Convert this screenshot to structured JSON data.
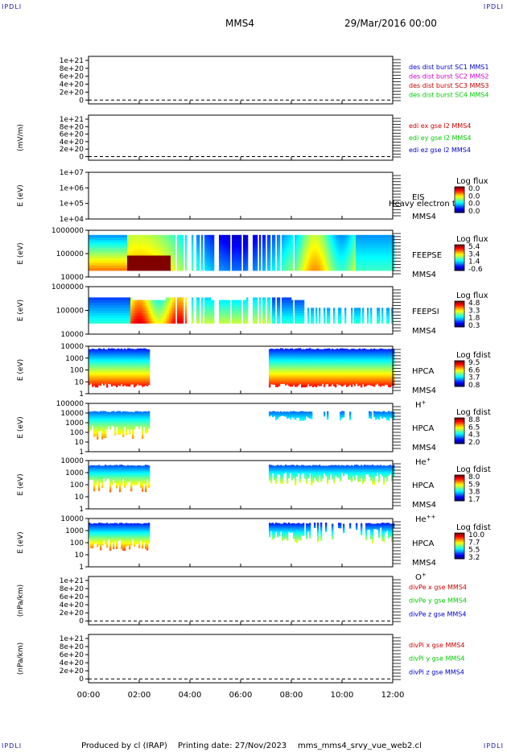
{
  "corners": {
    "tl": "IPDLI",
    "tr": "IPDLI",
    "bl": "IPDLI",
    "br": "IPDLI"
  },
  "header": {
    "spacecraft": "MMS4",
    "date": "29/Mar/2016 00:00"
  },
  "footer": {
    "produced": "Produced by cl (IRAP)",
    "printing": "Printing date: 27/Nov/2023",
    "file": "mms_mms4_srvy_vue_web2.cl"
  },
  "colors": {
    "blue": "#0000cc",
    "magenta": "#cc00cc",
    "red": "#cc0000",
    "green": "#00cc00",
    "black": "#000000"
  },
  "chart_data": {
    "type": "heatmap",
    "x_ticks": [
      "00:00",
      "02:00",
      "04:00",
      "06:00",
      "08:00",
      "10:00",
      "12:00"
    ],
    "x_range_hours": [
      0,
      12
    ],
    "panels": [
      {
        "kind": "line",
        "ylabel": "",
        "yticks": [
          "1e+21",
          "8e+20",
          "6e+20",
          "4e+20",
          "2e+20",
          "0"
        ],
        "ymax": 1e+21,
        "legend": [
          {
            "text": "des dist burst SC1 MMS1",
            "color": "blue"
          },
          {
            "text": "des dist burst SC2 MMS2",
            "color": "magenta"
          },
          {
            "text": "des dist burst SC3 MMS3",
            "color": "red"
          },
          {
            "text": "des dist burst SC4 MMS4",
            "color": "green"
          }
        ]
      },
      {
        "kind": "line",
        "ylabel": "(mV/m)",
        "yticks": [
          "1e+21",
          "8e+20",
          "6e+20",
          "4e+20",
          "2e+20",
          "0"
        ],
        "ymax": 1e+21,
        "legend": [
          {
            "text": "edi ex gse l2 MMS4",
            "color": "red"
          },
          {
            "text": "edi ey gse l2 MMS4",
            "color": "green"
          },
          {
            "text": "edi ez gse l2 MMS4",
            "color": "blue"
          }
        ]
      },
      {
        "kind": "spec",
        "ylabel": "E (eV)",
        "yticks": [
          "1e+07",
          "1e+06",
          "1e+05",
          "1e+04"
        ],
        "lmin": 4,
        "lmax": 7,
        "instrument": "EIS",
        "species": "",
        "spacecraft": "MMS4",
        "overlay": "Heavy electron to",
        "cb_title": "Log flux",
        "cb_ticks": [
          "0.0",
          "0.0",
          "0.0",
          "0.0"
        ],
        "pattern": "none"
      },
      {
        "kind": "spec",
        "ylabel": "E (eV)",
        "yticks": [
          "1000000",
          "100000",
          "10000"
        ],
        "lmin": 4,
        "lmax": 6.2,
        "instrument": "FEEPSE",
        "species": "",
        "spacecraft": "MMS4",
        "cb_title": "Log flux",
        "cb_ticks": [
          "5.4",
          "3.4",
          "1.4",
          "-0.6"
        ],
        "pattern": "feepse"
      },
      {
        "kind": "spec",
        "ylabel": "E (eV)",
        "yticks": [
          "1000000",
          "100000",
          "10000"
        ],
        "lmin": 4,
        "lmax": 6.2,
        "instrument": "FEEPSI",
        "species": "",
        "spacecraft": "MMS4",
        "cb_title": "Log flux",
        "cb_ticks": [
          "4.8",
          "3.3",
          "1.8",
          "0.3"
        ],
        "pattern": "feepsi"
      },
      {
        "kind": "spec",
        "ylabel": "E (eV)",
        "yticks": [
          "10000",
          "1000",
          "100",
          "10",
          "1"
        ],
        "lmin": 0,
        "lmax": 4.5,
        "instrument": "HPCA",
        "species": "H",
        "species_sup": "+",
        "spacecraft": "MMS4",
        "cb_title": "Log fdist",
        "cb_ticks": [
          "9.5",
          "6.6",
          "3.7",
          "0.8"
        ],
        "pattern": "hplus"
      },
      {
        "kind": "spec",
        "ylabel": "E (eV)",
        "yticks": [
          "100000",
          "10000",
          "1000",
          "100",
          "10",
          "1"
        ],
        "lmin": 0,
        "lmax": 5,
        "instrument": "HPCA",
        "species": "He",
        "species_sup": "+",
        "spacecraft": "MMS4",
        "cb_title": "Log fdist",
        "cb_ticks": [
          "8.8",
          "6.5",
          "4.3",
          "2.0"
        ],
        "pattern": "heplus"
      },
      {
        "kind": "spec",
        "ylabel": "E (eV)",
        "yticks": [
          "10000",
          "1000",
          "100",
          "10",
          "1"
        ],
        "lmin": 0,
        "lmax": 4.5,
        "instrument": "HPCA",
        "species": "He",
        "species_sup": "++",
        "spacecraft": "MMS4",
        "cb_title": "Log fdist",
        "cb_ticks": [
          "8.0",
          "5.9",
          "3.8",
          "1.7"
        ],
        "pattern": "hepp"
      },
      {
        "kind": "spec",
        "ylabel": "E (eV)",
        "yticks": [
          "10000",
          "1000",
          "100",
          "10",
          "1"
        ],
        "lmin": 0,
        "lmax": 4.5,
        "instrument": "HPCA",
        "species": "O",
        "species_sup": "+",
        "spacecraft": "MMS4",
        "cb_title": "Log fdist",
        "cb_ticks": [
          "10.0",
          "7.7",
          "5.5",
          "3.2"
        ],
        "pattern": "oplus"
      },
      {
        "kind": "line",
        "ylabel": "(nPa/km)",
        "yticks": [
          "1e+21",
          "8e+20",
          "6e+20",
          "4e+20",
          "2e+20",
          "0"
        ],
        "ymax": 1e+21,
        "legend": [
          {
            "text": "divPe x gse MMS4",
            "color": "red"
          },
          {
            "text": "divPe y gse MMS4",
            "color": "green"
          },
          {
            "text": "divPe z gse MMS4",
            "color": "blue"
          }
        ]
      },
      {
        "kind": "line",
        "ylabel": "(nPa/km)",
        "yticks": [
          "1e+21",
          "8e+20",
          "6e+20",
          "4e+20",
          "2e+20",
          "0"
        ],
        "ymax": 1e+21,
        "legend": [
          {
            "text": "divPi x gse MMS4",
            "color": "red"
          },
          {
            "text": "divPi y gse MMS4",
            "color": "green"
          },
          {
            "text": "divPi z gse MMS4",
            "color": "blue"
          }
        ]
      }
    ]
  }
}
